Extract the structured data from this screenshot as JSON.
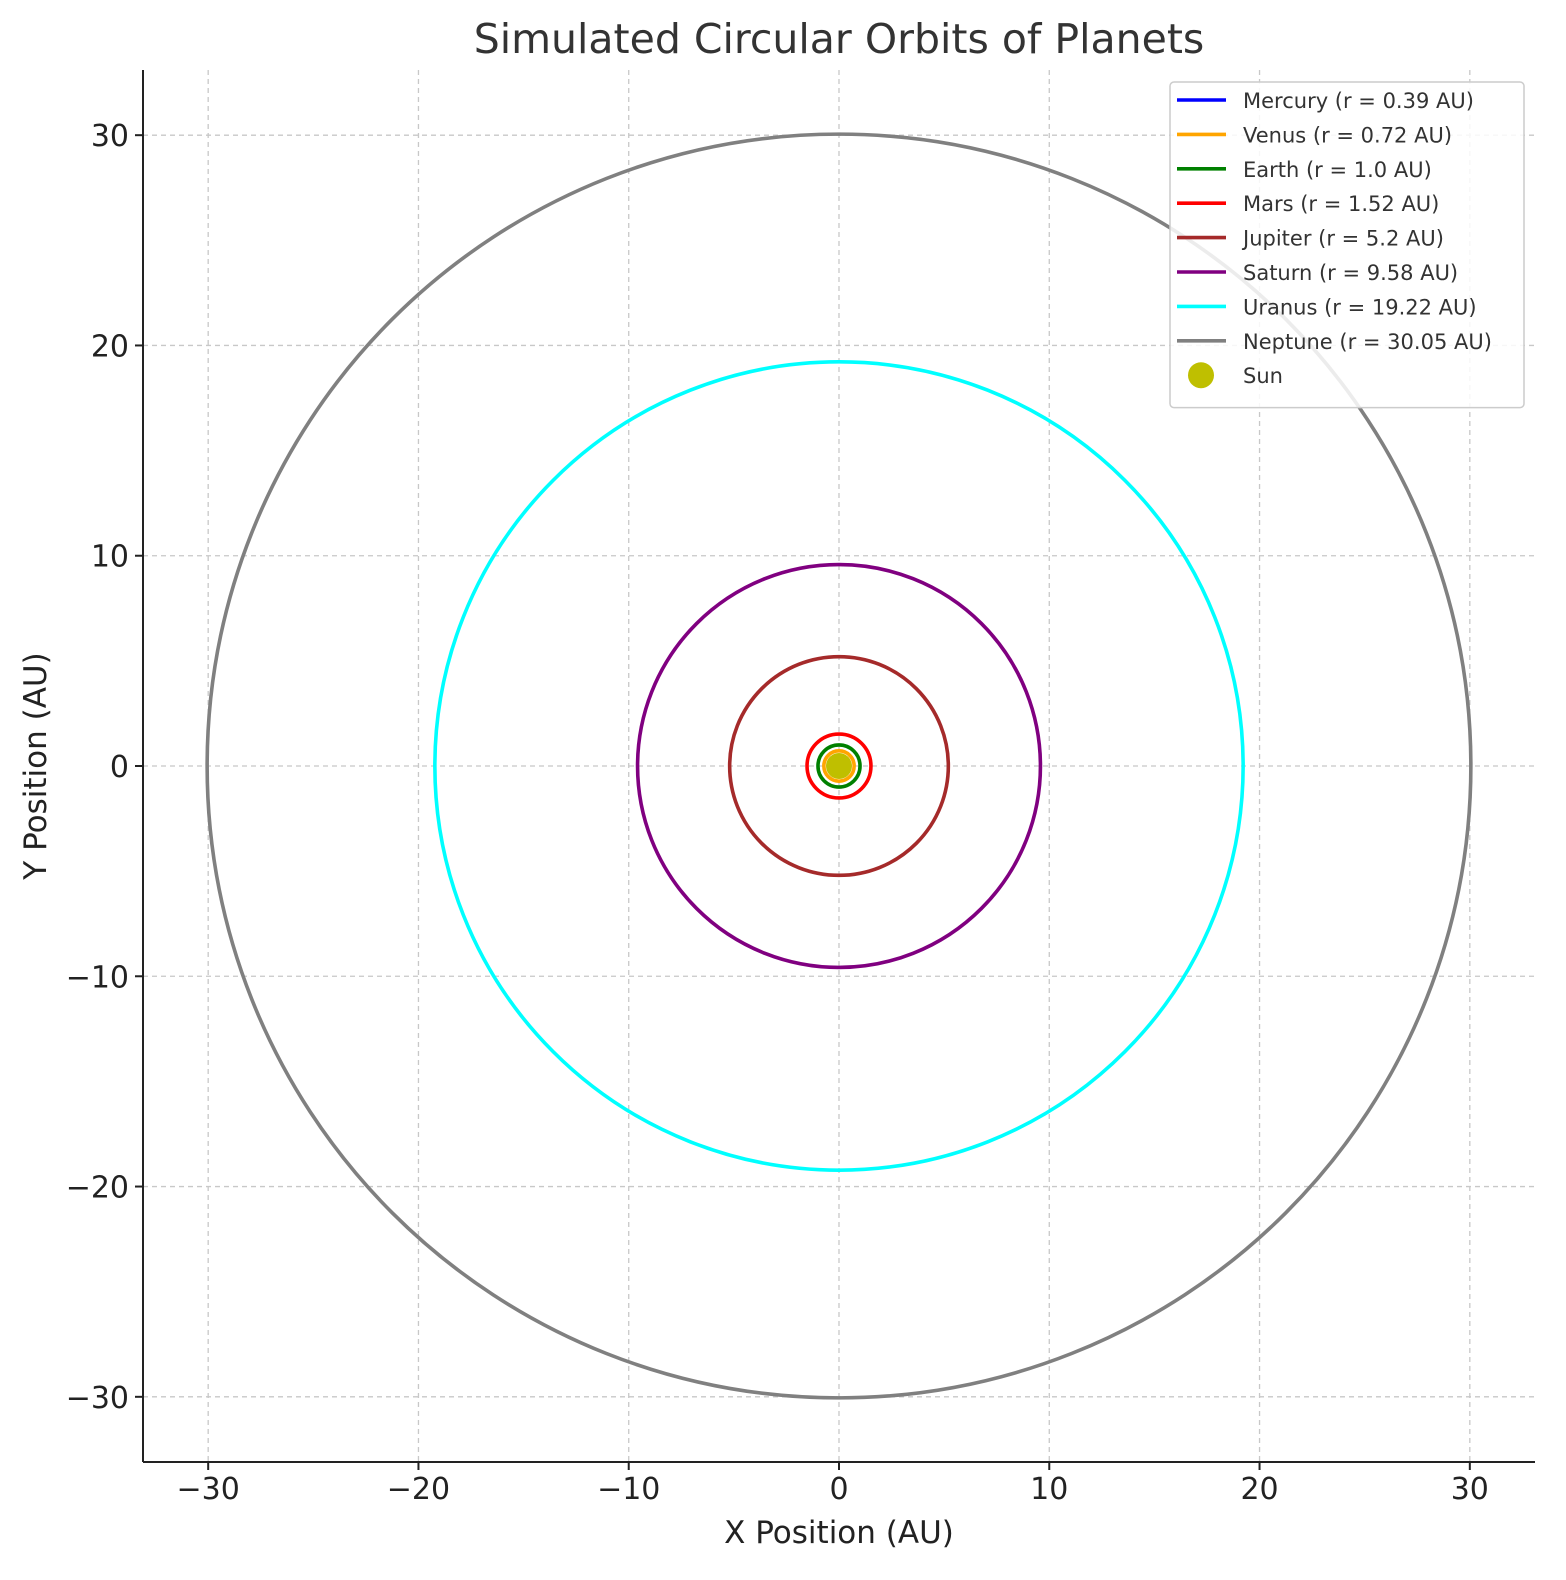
{
  "chart_data": {
    "type": "line",
    "title": "Simulated Circular Orbits of Planets",
    "xlabel": "X Position (AU)",
    "ylabel": "Y Position (AU)",
    "xlim": [
      -33.1,
      33.1
    ],
    "ylim": [
      -33.1,
      33.1
    ],
    "xticks": [
      -30,
      -20,
      -10,
      0,
      10,
      20,
      30
    ],
    "yticks": [
      -30,
      -20,
      -10,
      0,
      10,
      20,
      30
    ],
    "xtick_labels": [
      "−30",
      "−20",
      "−10",
      "0",
      "10",
      "20",
      "30"
    ],
    "ytick_labels": [
      "−30",
      "−20",
      "−10",
      "0",
      "10",
      "20",
      "30"
    ],
    "grid": true,
    "legend_position": "top-right",
    "series": [
      {
        "name": "Mercury (r = 0.39 AU)",
        "radius": 0.39,
        "color": "#0000ff"
      },
      {
        "name": "Venus (r = 0.72 AU)",
        "radius": 0.72,
        "color": "#ffa500"
      },
      {
        "name": "Earth (r = 1.0 AU)",
        "radius": 1.0,
        "color": "#008000"
      },
      {
        "name": "Mars (r = 1.52 AU)",
        "radius": 1.52,
        "color": "#ff0000"
      },
      {
        "name": "Jupiter (r = 5.2 AU)",
        "radius": 5.2,
        "color": "#a52a2a"
      },
      {
        "name": "Saturn (r = 9.58 AU)",
        "radius": 9.58,
        "color": "#800080"
      },
      {
        "name": "Uranus (r = 19.22 AU)",
        "radius": 19.22,
        "color": "#00ffff"
      },
      {
        "name": "Neptune (r = 30.05 AU)",
        "radius": 30.05,
        "color": "#808080"
      }
    ],
    "sun": {
      "name": "Sun",
      "x": 0,
      "y": 0,
      "color": "#bfbf00"
    }
  }
}
